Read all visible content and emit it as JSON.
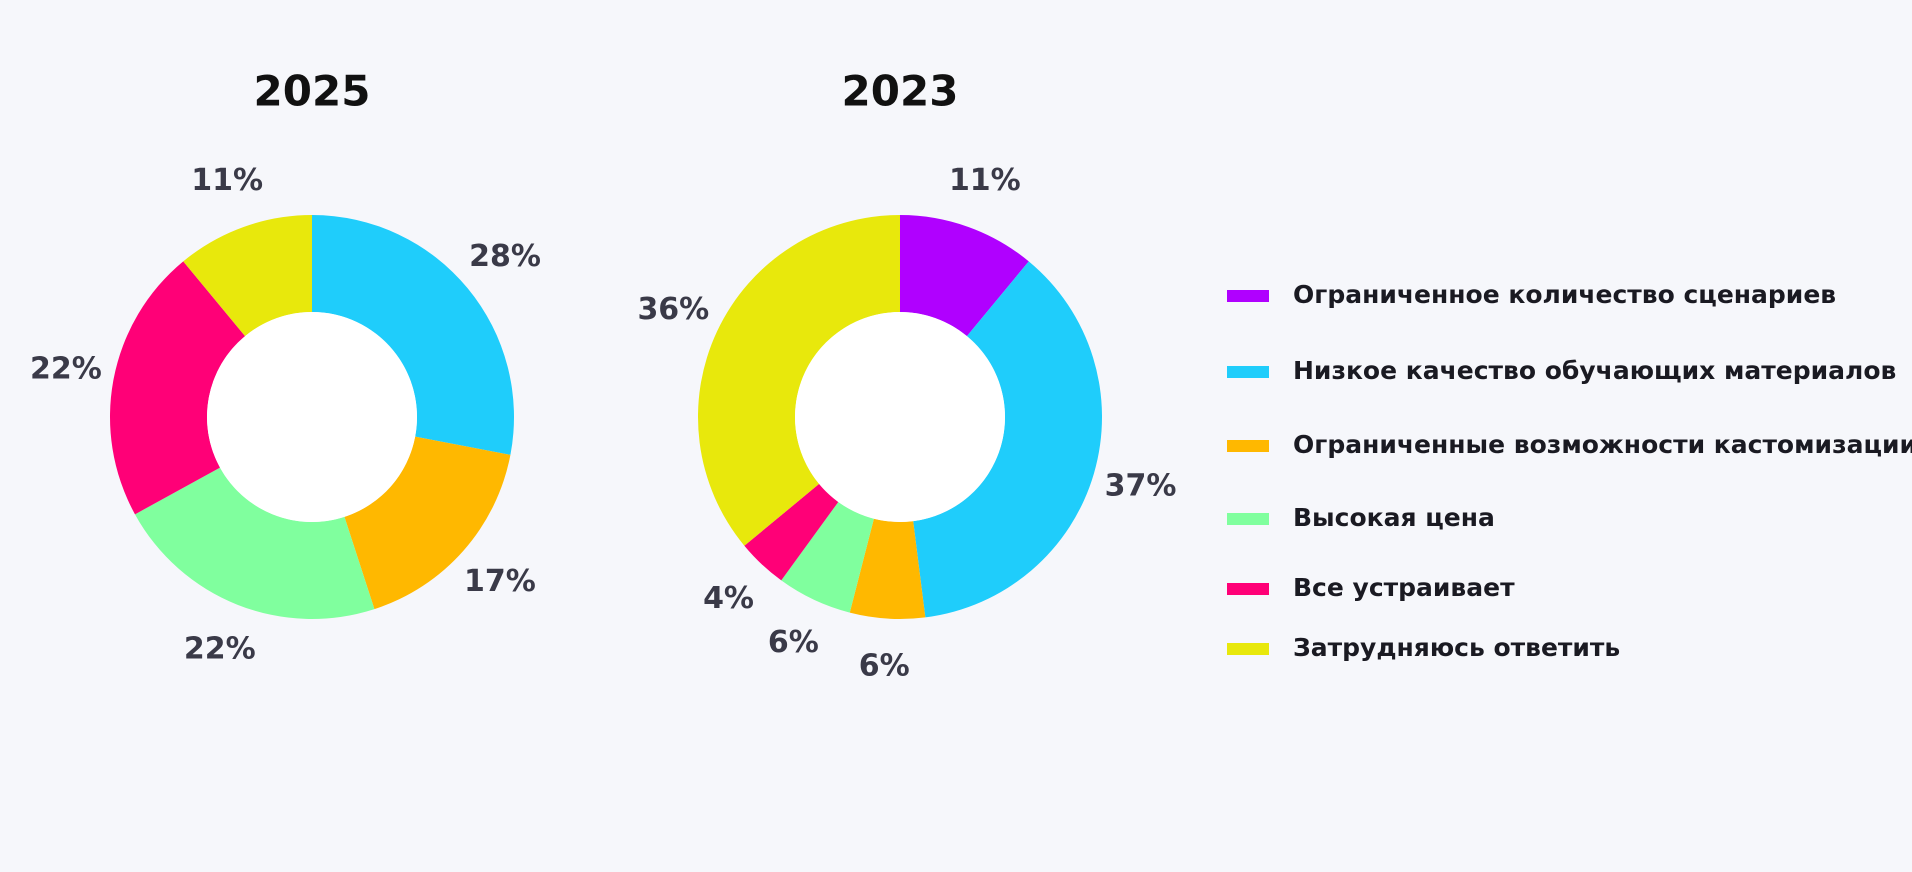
{
  "legend": {
    "categories": [
      "Ограниченное количество сценариев",
      "Низкое качество обучающих материалов",
      "Ограниченные возможности кастомизации",
      "Высокая цена",
      "Все устраивает",
      "Затрудняюсь ответить"
    ],
    "colors": [
      "#b000ff",
      "#1fcdfb",
      "#ffb800",
      "#80ff9e",
      "#ff0077",
      "#e8e80c"
    ]
  },
  "chart_data": [
    {
      "type": "pie",
      "donut": true,
      "title": "2025",
      "values": [
        null,
        28,
        17,
        22,
        22,
        11
      ],
      "value_labels": [
        null,
        "28%",
        "17%",
        "22%",
        "22%",
        "11%"
      ]
    },
    {
      "type": "pie",
      "donut": true,
      "title": "2023",
      "values": [
        11,
        37,
        6,
        6,
        4,
        36
      ],
      "value_labels": [
        "11%",
        "37%",
        "6%",
        "6%",
        "4%",
        "36%"
      ]
    }
  ]
}
